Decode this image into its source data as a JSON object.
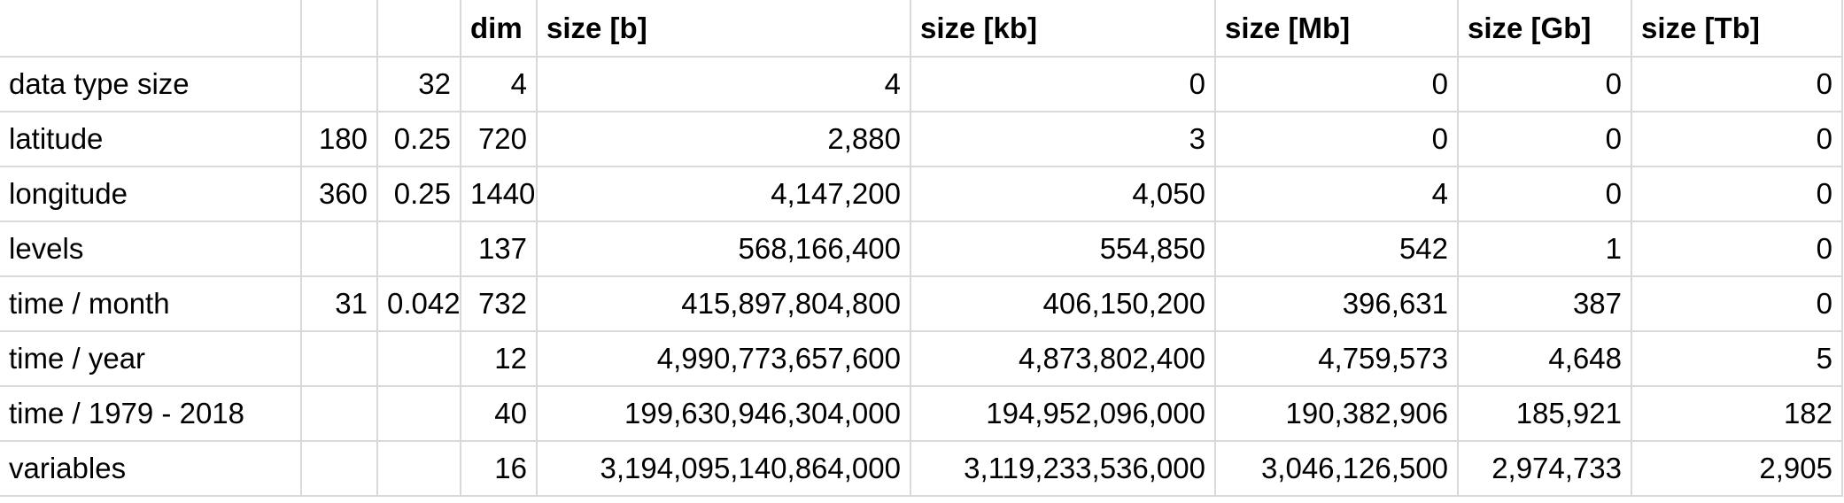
{
  "header": [
    "",
    "",
    "",
    "dim",
    "size [b]",
    "size [kb]",
    "size [Mb]",
    "size [Gb]",
    "size [Tb]"
  ],
  "rows": [
    [
      "data type size",
      "",
      "32",
      "4",
      "4",
      "0",
      "0",
      "0",
      "0"
    ],
    [
      "latitude",
      "180",
      "0.25",
      "720",
      "2,880",
      "3",
      "0",
      "0",
      "0"
    ],
    [
      "longitude",
      "360",
      "0.25",
      "1440",
      "4,147,200",
      "4,050",
      "4",
      "0",
      "0"
    ],
    [
      "levels",
      "",
      "",
      "137",
      "568,166,400",
      "554,850",
      "542",
      "1",
      "0"
    ],
    [
      "time / month",
      "31",
      "0.042",
      "732",
      "415,897,804,800",
      "406,150,200",
      "396,631",
      "387",
      "0"
    ],
    [
      "time / year",
      "",
      "",
      "12",
      "4,990,773,657,600",
      "4,873,802,400",
      "4,759,573",
      "4,648",
      "5"
    ],
    [
      "time / 1979 - 2018",
      "",
      "",
      "40",
      "199,630,946,304,000",
      "194,952,096,000",
      "190,382,906",
      "185,921",
      "182"
    ],
    [
      "variables",
      "",
      "",
      "16",
      "3,194,095,140,864,000",
      "3,119,233,536,000",
      "3,046,126,500",
      "2,974,733",
      "2,905"
    ]
  ]
}
